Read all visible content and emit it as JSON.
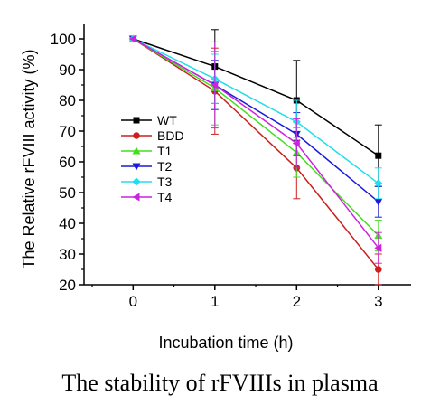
{
  "chart_data": {
    "type": "line",
    "title": "",
    "xlabel": "Incubation time (h)",
    "ylabel": "The Relative rFVIII activity (%)",
    "x": [
      0,
      1,
      2,
      3
    ],
    "xticks": [
      "0",
      "1",
      "2",
      "3"
    ],
    "yticks": [
      "20",
      "30",
      "40",
      "50",
      "60",
      "70",
      "80",
      "90",
      "100"
    ],
    "xlim": [
      -0.6,
      3.4
    ],
    "ylim": [
      20,
      105
    ],
    "grid": false,
    "legend_position": "left",
    "series": [
      {
        "name": "WT",
        "color": "#000000",
        "marker": "square",
        "values": [
          100,
          91,
          80,
          62
        ],
        "errors": [
          0,
          12,
          13,
          10
        ]
      },
      {
        "name": "BDD",
        "color": "#cc2020",
        "marker": "circle",
        "values": [
          100,
          83,
          58,
          25
        ],
        "errors": [
          0,
          14,
          10,
          5
        ]
      },
      {
        "name": "T1",
        "color": "#44dd22",
        "marker": "triangle-up",
        "values": [
          100,
          84,
          63,
          36
        ],
        "errors": [
          0,
          12,
          8,
          5
        ]
      },
      {
        "name": "T2",
        "color": "#1a1ad8",
        "marker": "triangle-down",
        "values": [
          100,
          85,
          69,
          47
        ],
        "errors": [
          0,
          8,
          7,
          5
        ]
      },
      {
        "name": "T3",
        "color": "#22ddee",
        "marker": "diamond",
        "values": [
          100,
          87,
          73,
          53
        ],
        "errors": [
          0,
          8,
          7,
          5
        ]
      },
      {
        "name": "T4",
        "color": "#cc22dd",
        "marker": "triangle-left",
        "values": [
          100,
          85,
          66,
          32
        ],
        "errors": [
          0,
          14,
          8,
          5
        ]
      }
    ]
  },
  "caption": "The stability of rFVIIIs in plasma"
}
